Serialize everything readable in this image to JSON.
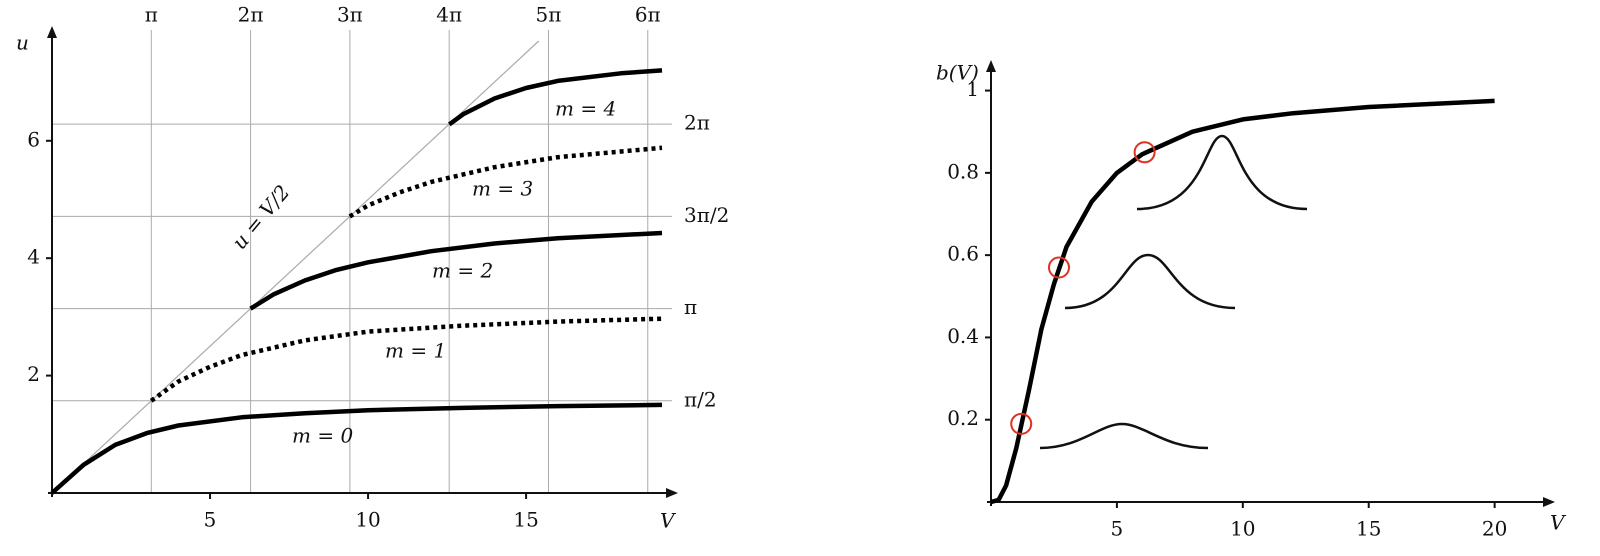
{
  "chart_data": [
    {
      "type": "line",
      "x_label": "V",
      "y_label": "u",
      "xlim": [
        0,
        19.3
      ],
      "ylim": [
        0,
        7.7
      ],
      "xticks": [
        5,
        10,
        15
      ],
      "yticks": [
        2,
        4,
        6
      ],
      "xticks_top": [
        {
          "value": 3.1416,
          "label": "π"
        },
        {
          "value": 6.2832,
          "label": "2π"
        },
        {
          "value": 9.4248,
          "label": "3π"
        },
        {
          "value": 12.5664,
          "label": "4π"
        },
        {
          "value": 15.708,
          "label": "5π"
        },
        {
          "value": 18.8496,
          "label": "6π"
        }
      ],
      "yticks_right": [
        {
          "value": 1.5708,
          "label": "π/2"
        },
        {
          "value": 3.1416,
          "label": "π"
        },
        {
          "value": 4.7124,
          "label": "3π/2"
        },
        {
          "value": 6.2832,
          "label": "2π"
        }
      ],
      "grid": true,
      "annotations": [
        "u = V/2",
        "m = 0",
        "m = 1",
        "m = 2",
        "m = 3",
        "m = 4"
      ],
      "series": [
        {
          "color": "#aaaaaa",
          "style": "thin",
          "x": [
            0,
            15.4
          ],
          "values": [
            0,
            7.7
          ]
        },
        {
          "color": "#000000",
          "style": "solid",
          "x": [
            0,
            1,
            2,
            3,
            4,
            6,
            8,
            10,
            13,
            16,
            19.3
          ],
          "values": [
            0,
            0.48,
            0.82,
            1.02,
            1.15,
            1.29,
            1.36,
            1.41,
            1.45,
            1.48,
            1.5
          ]
        },
        {
          "color": "#000000",
          "style": "dotted",
          "x": [
            3.14,
            4,
            5,
            6,
            8,
            10,
            13,
            16,
            19.3
          ],
          "values": [
            1.57,
            1.9,
            2.15,
            2.35,
            2.6,
            2.75,
            2.85,
            2.92,
            2.97
          ]
        },
        {
          "color": "#000000",
          "style": "solid",
          "x": [
            6.28,
            7,
            8,
            9,
            10,
            12,
            14,
            16,
            19.3
          ],
          "values": [
            3.14,
            3.38,
            3.62,
            3.8,
            3.93,
            4.12,
            4.25,
            4.34,
            4.43
          ]
        },
        {
          "color": "#000000",
          "style": "dotted",
          "x": [
            9.42,
            10,
            11,
            12,
            14,
            16,
            19.3
          ],
          "values": [
            4.71,
            4.9,
            5.12,
            5.3,
            5.55,
            5.72,
            5.88
          ]
        },
        {
          "color": "#000000",
          "style": "solid",
          "x": [
            12.57,
            13,
            14,
            15,
            16,
            18,
            19.3
          ],
          "values": [
            6.28,
            6.45,
            6.72,
            6.9,
            7.02,
            7.15,
            7.2
          ]
        }
      ]
    },
    {
      "type": "line",
      "x_label": "V",
      "y_label": "b(V)",
      "xlim": [
        0,
        22
      ],
      "ylim": [
        0,
        1.05
      ],
      "xticks": [
        5,
        10,
        15,
        20
      ],
      "yticks": [
        0.2,
        0.4,
        0.6,
        0.8,
        1
      ],
      "grid": false,
      "series": [
        {
          "color": "#000000",
          "style": "solid",
          "x": [
            0,
            0.3,
            0.6,
            1,
            1.5,
            2,
            2.5,
            3,
            4,
            5,
            6,
            8,
            10,
            12,
            15,
            20
          ],
          "values": [
            0,
            0.005,
            0.04,
            0.13,
            0.27,
            0.42,
            0.53,
            0.62,
            0.73,
            0.8,
            0.845,
            0.9,
            0.93,
            0.945,
            0.96,
            0.975
          ]
        },
        {
          "color": "#e03020",
          "style": "markers",
          "x": [
            1.2,
            2.7,
            6.1
          ],
          "values": [
            0.19,
            0.57,
            0.85
          ]
        }
      ]
    }
  ]
}
